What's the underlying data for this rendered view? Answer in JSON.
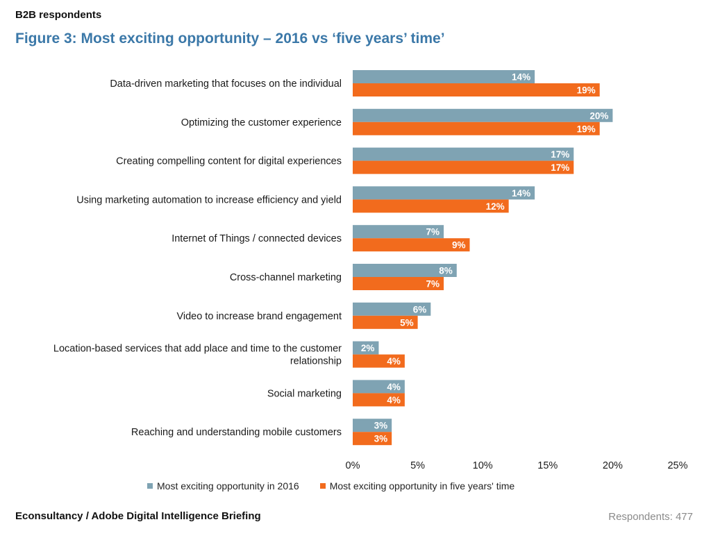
{
  "header": {
    "supertitle": "B2B respondents",
    "title": "Figure 3: Most exciting opportunity – 2016 vs ‘five years’ time’"
  },
  "footer": {
    "source": "Econsultancy / Adobe Digital Intelligence Briefing",
    "respondents": "Respondents: 477"
  },
  "colors": {
    "series_2016": "#7fa3b3",
    "series_five_years": "#f26b1d"
  },
  "chart_data": {
    "type": "bar",
    "orientation": "horizontal",
    "categories": [
      "Data-driven marketing that focuses on the individual",
      "Optimizing the customer experience",
      "Creating compelling content for digital experiences",
      "Using marketing automation to increase efficiency and yield",
      "Internet of Things / connected devices",
      "Cross-channel marketing",
      "Video to increase brand engagement",
      "Location-based services that add place and time to the customer relationship",
      "Social marketing",
      "Reaching and understanding mobile customers"
    ],
    "series": [
      {
        "name": "Most exciting opportunity in 2016",
        "values": [
          14,
          20,
          17,
          14,
          7,
          8,
          6,
          2,
          4,
          3
        ]
      },
      {
        "name": "Most exciting opportunity in five years' time",
        "values": [
          19,
          19,
          17,
          12,
          9,
          7,
          5,
          4,
          4,
          3
        ]
      }
    ],
    "xlim": [
      0,
      25
    ],
    "xticks": [
      "0%",
      "5%",
      "10%",
      "15%",
      "20%",
      "25%"
    ],
    "value_suffix": "%",
    "legend": "bottom",
    "grid": false
  }
}
